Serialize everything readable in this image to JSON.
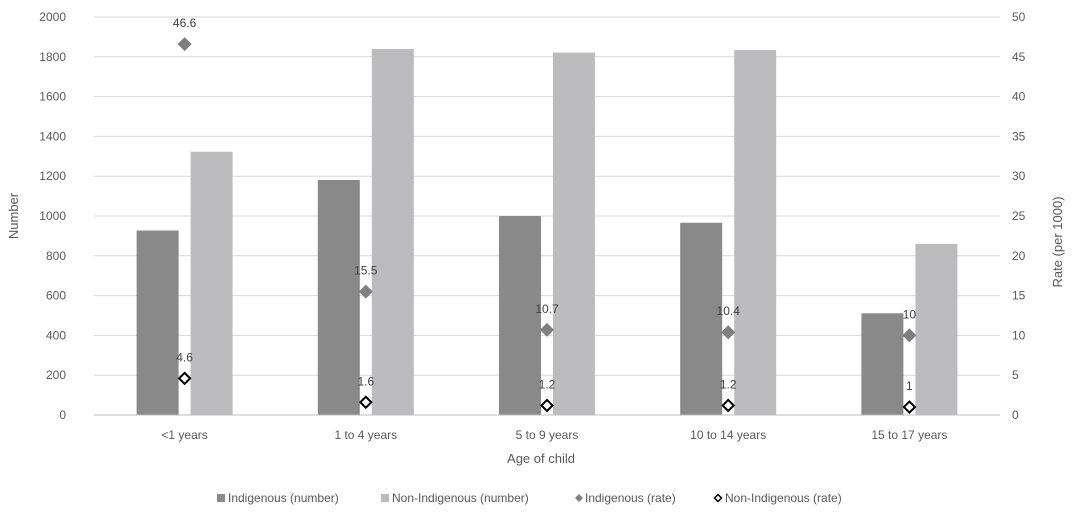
{
  "chart_data": {
    "type": "bar",
    "categories": [
      "<1 years",
      "1 to 4 years",
      "5 to 9 years",
      "10 to 14 years",
      "15 to 17 years"
    ],
    "xlabel": "Age of child",
    "ylabel": "Number",
    "y2label": "Rate (per 1000)",
    "ylim": [
      0,
      2000
    ],
    "yticks": [
      0,
      200,
      400,
      600,
      800,
      1000,
      1200,
      1400,
      1600,
      1800,
      2000
    ],
    "y2lim": [
      0,
      50
    ],
    "y2ticks": [
      0,
      5,
      10,
      15,
      20,
      25,
      30,
      35,
      40,
      45,
      50
    ],
    "grid": true,
    "legend_position": "bottom",
    "bar_series": [
      {
        "name": "Indigenous (number)",
        "color": "#898989",
        "values": [
          927,
          1181,
          1000,
          966,
          511
        ]
      },
      {
        "name": "Non-Indigenous (number)",
        "color": "#bcbcbe",
        "values": [
          1323,
          1839,
          1821,
          1834,
          860
        ]
      }
    ],
    "rate_series": [
      {
        "name": "Indigenous (rate)",
        "marker": "filled-diamond",
        "color": "#7f7f7f",
        "values": [
          46.6,
          15.5,
          10.7,
          10.4,
          10
        ]
      },
      {
        "name": "Non-Indigenous (rate)",
        "marker": "hollow-diamond",
        "color": "#000000",
        "values": [
          4.6,
          1.6,
          1.2,
          1.2,
          1
        ]
      }
    ]
  }
}
